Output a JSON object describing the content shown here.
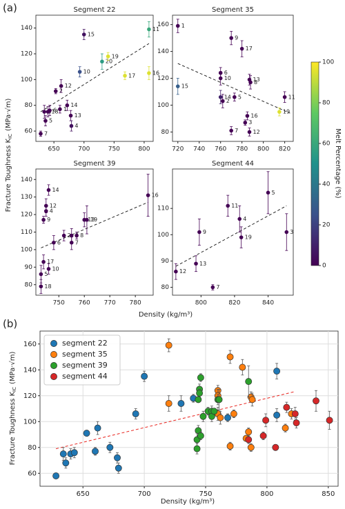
{
  "figure_a": {
    "label": "(a)",
    "xlabel": "Density (kg/m³)",
    "ylabel": {
      "text": "Fracture Toughness K",
      "sub": "IC",
      "unit": "(MPa·√m)"
    }
  },
  "colorbar": {
    "label": "Melt Percentage (%)",
    "lim": [
      0,
      100
    ],
    "ticks": [
      0,
      20,
      40,
      60,
      80,
      100
    ],
    "colormap": "viridis"
  },
  "chart_data": [
    {
      "type": "scatter",
      "title": "Segment 22",
      "labels": [
        "7",
        "5",
        "3",
        "18",
        "6",
        "2",
        "12",
        "1",
        "14",
        "13",
        "4",
        "10",
        "15",
        "20",
        "19",
        "17",
        "16",
        "11"
      ],
      "x": [
        628,
        636,
        634,
        640,
        643,
        653,
        662,
        660,
        672,
        678,
        679,
        693,
        700,
        730,
        740,
        768,
        808,
        808
      ],
      "y": [
        58,
        68,
        75,
        75,
        76,
        91,
        95,
        77,
        80,
        72,
        64,
        106,
        135,
        114,
        118,
        103,
        105,
        139
      ],
      "errors": [
        2,
        4,
        5,
        4,
        4,
        2,
        5,
        3,
        4,
        4,
        4,
        4,
        4,
        6,
        3,
        3,
        5,
        6
      ],
      "melt": [
        0,
        0,
        0,
        0,
        0,
        0,
        0,
        0,
        0,
        0,
        5,
        25,
        5,
        55,
        95,
        95,
        95,
        60
      ],
      "trend": {
        "x": [
          628,
          808
        ],
        "y": [
          75,
          128
        ]
      },
      "xlim": [
        620,
        815
      ],
      "ylim": [
        52,
        150
      ],
      "xticks": [
        650,
        700,
        750,
        800
      ],
      "yticks": [
        60,
        80,
        100,
        120,
        140
      ]
    },
    {
      "type": "scatter",
      "title": "Segment 35",
      "labels": [
        "1",
        "15",
        "9",
        "17",
        "6",
        "10",
        "14",
        "2",
        "5",
        "13",
        "8",
        "11",
        "16",
        "3",
        "7",
        "12",
        "19"
      ],
      "x": [
        720,
        720,
        770,
        780,
        760,
        760,
        760,
        762,
        773,
        787,
        788,
        820,
        785,
        783,
        770,
        787,
        815
      ],
      "y": [
        159,
        114,
        150,
        142,
        124,
        120,
        106,
        103,
        106,
        119,
        117,
        106,
        92,
        87,
        81,
        80,
        95
      ],
      "errors": [
        5,
        6,
        5,
        6,
        4,
        5,
        5,
        5,
        3,
        4,
        5,
        4,
        3,
        2,
        3,
        3,
        3
      ],
      "melt": [
        0,
        30,
        0,
        0,
        0,
        0,
        10,
        0,
        0,
        0,
        0,
        0,
        0,
        0,
        0,
        0,
        95
      ],
      "trend": {
        "x": [
          720,
          825
        ],
        "y": [
          131,
          94
        ]
      },
      "xlim": [
        715,
        828
      ],
      "ylim": [
        73,
        167
      ],
      "xticks": [
        720,
        740,
        760,
        780,
        800,
        820
      ],
      "yticks": [
        80,
        100,
        120,
        140,
        160
      ]
    },
    {
      "type": "scatter",
      "title": "Segment 39",
      "labels": [
        "14",
        "12",
        "4",
        "9",
        "17",
        "5",
        "10",
        "18",
        "6",
        "2",
        "3",
        "7",
        "8",
        "13",
        "19",
        "16"
      ],
      "x": [
        746,
        745,
        745,
        744,
        744,
        743,
        746,
        743,
        748,
        752,
        755,
        755,
        757,
        760,
        761,
        785
      ],
      "y": [
        134,
        125,
        122,
        117,
        93,
        86,
        89,
        79,
        104,
        108,
        108,
        104,
        108,
        117,
        117,
        131
      ],
      "errors": [
        3,
        4,
        3,
        2,
        4,
        5,
        3,
        4,
        4,
        3,
        4,
        4,
        2,
        4,
        8,
        12
      ],
      "melt": [
        0,
        0,
        0,
        0,
        0,
        0,
        0,
        0,
        0,
        0,
        0,
        0,
        0,
        0,
        0,
        0
      ],
      "trend": {
        "x": [
          743,
          785
        ],
        "y": [
          101,
          127
        ]
      },
      "xlim": [
        741,
        787
      ],
      "ylim": [
        74,
        146
      ],
      "xticks": [
        750,
        760,
        770,
        780
      ],
      "yticks": [
        80,
        90,
        100,
        110,
        120,
        130,
        140
      ]
    },
    {
      "type": "scatter",
      "title": "Segment 44",
      "labels": [
        "12",
        "13",
        "9",
        "7",
        "11",
        "4",
        "19",
        "5",
        "3"
      ],
      "x": [
        785,
        797,
        799,
        807,
        816,
        823,
        824,
        840,
        851
      ],
      "y": [
        86,
        89,
        101,
        80,
        111,
        106,
        99,
        116,
        101
      ],
      "errors": [
        3,
        3,
        5,
        1,
        4,
        5,
        4,
        8,
        7
      ],
      "melt": [
        0,
        0,
        0,
        0,
        0,
        0,
        0,
        0,
        0
      ],
      "trend": {
        "x": [
          785,
          851
        ],
        "y": [
          88,
          111
        ]
      },
      "xlim": [
        783,
        855
      ],
      "ylim": [
        77,
        125
      ],
      "xticks": [
        800,
        820,
        840
      ],
      "yticks": [
        80,
        90,
        100,
        110
      ]
    },
    {
      "type": "grouped-scatter",
      "panel_label": "(b)",
      "xlabel": "Density (kg/m³)",
      "ylabel": {
        "text": "Fracture Toughness K",
        "sub": "IC",
        "unit": "(MPa·√m)"
      },
      "grid": true,
      "legend": "upper left",
      "series": [
        {
          "name": "segment 22",
          "color": "#1f77b4",
          "x": [
            628,
            636,
            634,
            640,
            643,
            653,
            662,
            660,
            672,
            678,
            679,
            693,
            700,
            730,
            740,
            768,
            808,
            808
          ],
          "y": [
            58,
            68,
            75,
            75,
            76,
            91,
            95,
            77,
            80,
            72,
            64,
            106,
            135,
            114,
            118,
            103,
            105,
            139
          ],
          "errors": [
            2,
            4,
            5,
            4,
            4,
            2,
            5,
            3,
            4,
            4,
            4,
            4,
            4,
            6,
            3,
            3,
            5,
            6
          ]
        },
        {
          "name": "segment 35",
          "color": "#ff7f0e",
          "x": [
            720,
            720,
            770,
            780,
            760,
            760,
            760,
            762,
            773,
            787,
            788,
            820,
            785,
            783,
            770,
            787,
            815
          ],
          "y": [
            159,
            114,
            150,
            142,
            124,
            120,
            106,
            103,
            106,
            119,
            117,
            106,
            92,
            87,
            81,
            80,
            95
          ],
          "errors": [
            5,
            6,
            5,
            6,
            4,
            5,
            5,
            5,
            3,
            4,
            5,
            4,
            3,
            2,
            3,
            3,
            3
          ]
        },
        {
          "name": "segment 39",
          "color": "#2ca02c",
          "x": [
            746,
            745,
            745,
            744,
            744,
            743,
            746,
            743,
            748,
            752,
            755,
            755,
            757,
            760,
            761,
            785
          ],
          "y": [
            134,
            125,
            122,
            117,
            93,
            86,
            89,
            79,
            104,
            108,
            108,
            104,
            108,
            117,
            117,
            131
          ],
          "errors": [
            3,
            4,
            3,
            2,
            4,
            5,
            3,
            4,
            4,
            3,
            4,
            4,
            2,
            4,
            8,
            12
          ]
        },
        {
          "name": "segment 44",
          "color": "#d62728",
          "x": [
            785,
            797,
            799,
            807,
            816,
            823,
            824,
            840,
            851
          ],
          "y": [
            86,
            89,
            101,
            80,
            111,
            106,
            99,
            116,
            101
          ],
          "errors": [
            3,
            3,
            5,
            1,
            4,
            5,
            4,
            8,
            7
          ]
        }
      ],
      "trend": {
        "x": [
          628,
          822
        ],
        "y": [
          79,
          123
        ]
      },
      "xlim": [
        615,
        858
      ],
      "ylim": [
        50,
        170
      ],
      "xticks": [
        650,
        700,
        750,
        800,
        850
      ],
      "yticks": [
        60,
        80,
        100,
        120,
        140,
        160
      ]
    }
  ]
}
